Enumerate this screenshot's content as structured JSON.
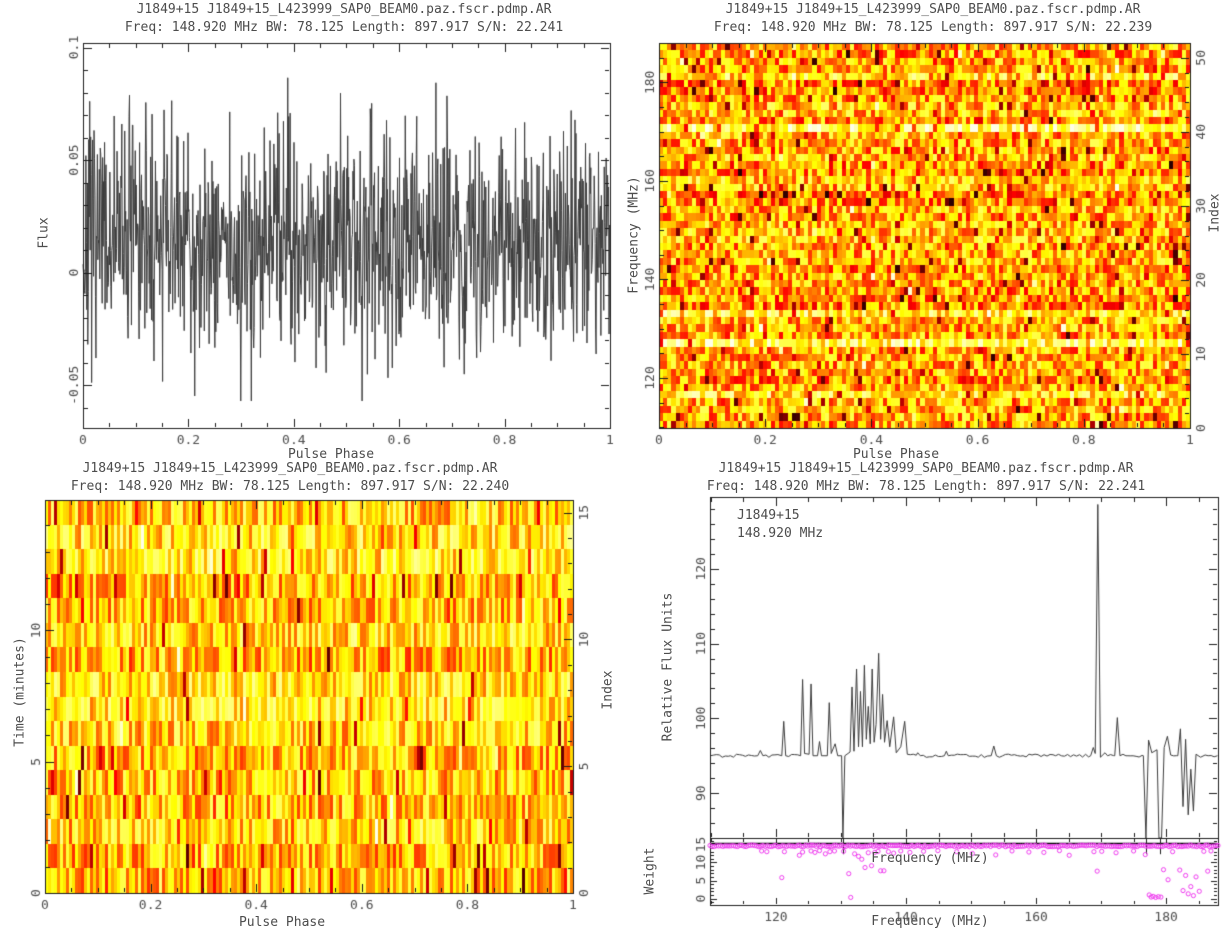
{
  "colors": {
    "background": "#ffffff",
    "text": "#4d4d4d",
    "axis": "#1c1c1c",
    "profile_line": "#3c3c3c",
    "spectrum_line": "#3c3c3c",
    "weight_magenta": "#ee3bee",
    "weight_hline": "#000000"
  },
  "chart_data": [
    {
      "id": "profile",
      "type": "line",
      "title": "J1849+15 J1849+15_L423999_SAP0_BEAM0.paz.fscr.pdmp.AR",
      "subtitle": "Freq: 148.920 MHz BW: 78.125 Length: 897.917 S/N: 22.241",
      "xlabel": "Pulse Phase",
      "ylabel": "Flux",
      "xlim": [
        0,
        1
      ],
      "ylim": [
        -0.069,
        0.102
      ],
      "xticks": [
        0,
        0.2,
        0.4,
        0.6,
        0.8,
        1
      ],
      "xtick_labels": [
        "0",
        "0.2",
        "0.4",
        "0.6",
        "0.8",
        "1"
      ],
      "x_minor_step": 0.05,
      "yticks": [
        -0.05,
        0,
        0.05,
        0.1
      ],
      "ytick_labels": [
        "-0.05",
        "0",
        "0.05",
        "0.1"
      ],
      "y_minor_step": 0.01,
      "noise": {
        "seed": 7,
        "n": 1100,
        "mean": 0.015,
        "sigma": 0.026,
        "min": -0.057,
        "max": 0.0955
      },
      "description": "dense gray noise profile, no clear pulse"
    },
    {
      "id": "phase_frequency",
      "type": "heatmap",
      "title": "J1849+15 J1849+15_L423999_SAP0_BEAM0.paz.fscr.pdmp.AR",
      "subtitle": "Freq: 148.920 MHz BW: 78.125 Length: 897.917 S/N: 22.239",
      "xlabel": "Pulse Phase",
      "ylabel": "Frequency (MHz)",
      "ylabel_right": "Index",
      "xlim": [
        0,
        1
      ],
      "ylim": [
        109.86,
        187.98
      ],
      "ylim_right": [
        0,
        52
      ],
      "xticks": [
        0,
        0.2,
        0.4,
        0.6,
        0.8,
        1
      ],
      "xtick_labels": [
        "0",
        "0.2",
        "0.4",
        "0.6",
        "0.8",
        "1"
      ],
      "x_minor_step": 0.05,
      "yticks": [
        120,
        140,
        160,
        180
      ],
      "ytick_labels": [
        "120",
        "140",
        "160",
        "180"
      ],
      "y_minor_step": 5,
      "yticks_right": [
        10,
        20,
        30,
        40,
        50
      ],
      "ytick_right_labels": [
        "10",
        "20",
        "30",
        "40",
        "50"
      ],
      "y_right_minor_step": 2,
      "colormap": "heat black-red-orange-yellow-white",
      "heat": {
        "seed": 11,
        "rows": 52,
        "cols": 128,
        "base_mean": 0.56,
        "noise_amp": 0.42,
        "dark_frac": 0.08,
        "bright_rows": [
          {
            "freq": 170.2,
            "mean": 0.86
          },
          {
            "freq": 170.9,
            "mean": 0.79
          },
          {
            "freq": 127.8,
            "mean": 0.77
          },
          {
            "freq": 132.8,
            "mean": 0.71
          },
          {
            "freq": 117.3,
            "mean": 0.7
          },
          {
            "freq": 181.5,
            "mean": 0.68
          }
        ]
      }
    },
    {
      "id": "phase_time",
      "type": "heatmap",
      "title": "J1849+15 J1849+15_L423999_SAP0_BEAM0.paz.fscr.pdmp.AR",
      "subtitle": "Freq: 148.920 MHz BW: 78.125 Length: 897.917 S/N: 22.240",
      "xlabel": "Pulse Phase",
      "ylabel": "Time (minutes)",
      "ylabel_right": "Index",
      "xlim": [
        0,
        1
      ],
      "ylim": [
        0,
        14.97
      ],
      "ylim_right": [
        0,
        15.5
      ],
      "xticks": [
        0,
        0.2,
        0.4,
        0.6,
        0.8,
        1
      ],
      "xtick_labels": [
        "0",
        "0.2",
        "0.4",
        "0.6",
        "0.8",
        "1"
      ],
      "x_minor_step": 0.05,
      "yticks": [
        0,
        5,
        10
      ],
      "ytick_labels": [
        "0",
        "5",
        "10"
      ],
      "y_minor_step": 1,
      "yticks_right": [
        0,
        5,
        10,
        15
      ],
      "ytick_right_labels": [
        "0",
        "5",
        "10",
        "15"
      ],
      "y_right_minor_step": 1,
      "colormap": "heat black-red-orange-yellow-white",
      "heat": {
        "seed": 23,
        "rows": 16,
        "cols": 176,
        "base_mean": 0.63,
        "noise_amp": 0.38,
        "dark_frac": 0.05,
        "bright_rows": []
      }
    },
    {
      "id": "bandpass",
      "type": "line",
      "title": "J1849+15 J1849+15_L423999_SAP0_BEAM0.paz.fscr.pdmp.AR",
      "subtitle": "Freq: 148.920 MHz BW: 78.125 Length: 897.917 S/N: 22.241",
      "xlabel": "Frequency (MHz)",
      "ylabel": "Relative Flux Units",
      "ylabel_weight": "Weight",
      "annotation_line1": "J1849+15",
      "annotation_line2": "148.920 MHz",
      "xlim": [
        109.86,
        187.98
      ],
      "ylim": [
        84,
        129.6
      ],
      "xticks": [
        120,
        140,
        160,
        180
      ],
      "xtick_labels": [
        "120",
        "140",
        "160",
        "180"
      ],
      "x_minor_step": 5,
      "yticks": [
        90,
        100,
        110,
        120
      ],
      "ytick_labels": [
        "90",
        "100",
        "110",
        "120"
      ],
      "y_minor_step": 2,
      "baseline": 95,
      "spectrum": [
        [
          109.9,
          95
        ],
        [
          113,
          95
        ],
        [
          117.2,
          95
        ],
        [
          117.6,
          95.7
        ],
        [
          118,
          95
        ],
        [
          120.9,
          95
        ],
        [
          121.2,
          99.6
        ],
        [
          121.5,
          95
        ],
        [
          123.8,
          95
        ],
        [
          124.1,
          105.2
        ],
        [
          124.4,
          95.3
        ],
        [
          125.1,
          95.2
        ],
        [
          125.4,
          104.6
        ],
        [
          125.7,
          95
        ],
        [
          126.4,
          95
        ],
        [
          126.7,
          96.9
        ],
        [
          127,
          95
        ],
        [
          127.9,
          95
        ],
        [
          128.2,
          102.1
        ],
        [
          128.5,
          95.3
        ],
        [
          129.1,
          96.6
        ],
        [
          129.5,
          95
        ],
        [
          130.1,
          95
        ],
        [
          130.3,
          83.5
        ],
        [
          130.6,
          95
        ],
        [
          131.4,
          95.5
        ],
        [
          131.7,
          104.2
        ],
        [
          132,
          95.6
        ],
        [
          132.4,
          106.6
        ],
        [
          132.7,
          96.2
        ],
        [
          133,
          103.6
        ],
        [
          133.3,
          96.2
        ],
        [
          133.6,
          107.1
        ],
        [
          133.9,
          97.2
        ],
        [
          134.2,
          101.6
        ],
        [
          134.5,
          96.6
        ],
        [
          134.8,
          106.6
        ],
        [
          135.1,
          96.8
        ],
        [
          135.4,
          99.2
        ],
        [
          135.8,
          108.7
        ],
        [
          136.1,
          97.2
        ],
        [
          136.4,
          103.2
        ],
        [
          136.7,
          96.8
        ],
        [
          137.1,
          99.7
        ],
        [
          137.5,
          96.2
        ],
        [
          138.1,
          100.2
        ],
        [
          138.5,
          95.4
        ],
        [
          139.2,
          96.2
        ],
        [
          139.8,
          99.6
        ],
        [
          140.2,
          95.2
        ],
        [
          141.8,
          95.4
        ],
        [
          142.2,
          95
        ],
        [
          145.9,
          95
        ],
        [
          146.2,
          95.6
        ],
        [
          146.5,
          95
        ],
        [
          153.1,
          95
        ],
        [
          153.5,
          96.3
        ],
        [
          153.9,
          95
        ],
        [
          158,
          95
        ],
        [
          163,
          95
        ],
        [
          168.4,
          95
        ],
        [
          168.8,
          96.1
        ],
        [
          169.1,
          95.3
        ],
        [
          169.5,
          128.6
        ],
        [
          169.9,
          94.8
        ],
        [
          170.6,
          95.4
        ],
        [
          171,
          95
        ],
        [
          172.1,
          95
        ],
        [
          172.5,
          100.1
        ],
        [
          172.9,
          95
        ],
        [
          174,
          95
        ],
        [
          176.5,
          95
        ],
        [
          176.9,
          83.5
        ],
        [
          177.3,
          97.1
        ],
        [
          177.8,
          95.4
        ],
        [
          178.6,
          95.8
        ],
        [
          178.9,
          83.5
        ],
        [
          179.3,
          83.5
        ],
        [
          179.7,
          96.1
        ],
        [
          180.2,
          97.6
        ],
        [
          180.7,
          95.1
        ],
        [
          181.8,
          95
        ],
        [
          182.2,
          98.6
        ],
        [
          182.6,
          88.2
        ],
        [
          183,
          97.2
        ],
        [
          183.4,
          87.1
        ],
        [
          183.8,
          93.2
        ],
        [
          184.2,
          87.6
        ],
        [
          184.6,
          95.2
        ],
        [
          185.3,
          94.8
        ],
        [
          186,
          95.1
        ],
        [
          187.9,
          95
        ]
      ],
      "weights": {
        "ylim": [
          -1.8,
          16.8
        ],
        "yticks": [
          0,
          5,
          10,
          15
        ],
        "ytick_labels": [
          "0",
          "5",
          "10",
          "15"
        ],
        "y_minor_step": 1,
        "base_level": 14.6,
        "n_base": 240,
        "hline": 15.3,
        "outliers": [
          [
            117.8,
            13.2
          ],
          [
            118.6,
            13.0
          ],
          [
            120.9,
            5.8
          ],
          [
            121.3,
            13.0
          ],
          [
            123.6,
            12.0
          ],
          [
            124.1,
            12.9
          ],
          [
            125.4,
            13.2
          ],
          [
            126.0,
            12.8
          ],
          [
            126.7,
            13.3
          ],
          [
            127.6,
            12.4
          ],
          [
            128.3,
            13.0
          ],
          [
            129.0,
            13.2
          ],
          [
            130.4,
            13.1
          ],
          [
            131.2,
            6.9
          ],
          [
            131.5,
            0.3
          ],
          [
            132.1,
            12.4
          ],
          [
            132.7,
            11.7
          ],
          [
            133.2,
            10.9
          ],
          [
            133.7,
            8.6
          ],
          [
            134.2,
            12.7
          ],
          [
            134.7,
            9.1
          ],
          [
            135.2,
            12.8
          ],
          [
            135.7,
            13.1
          ],
          [
            136.1,
            7.7
          ],
          [
            136.6,
            7.7
          ],
          [
            137.3,
            13.0
          ],
          [
            138.1,
            12.6
          ],
          [
            139.2,
            13.2
          ],
          [
            140.6,
            12.8
          ],
          [
            142.7,
            13.1
          ],
          [
            144.9,
            13.3
          ],
          [
            147.8,
            13.0
          ],
          [
            150.2,
            12.5
          ],
          [
            153.8,
            12.1
          ],
          [
            156.3,
            13.2
          ],
          [
            158.9,
            12.9
          ],
          [
            161.2,
            12.8
          ],
          [
            163.6,
            13.3
          ],
          [
            165.1,
            12.0
          ],
          [
            168.9,
            13.0
          ],
          [
            169.4,
            7.6
          ],
          [
            170.1,
            13.1
          ],
          [
            172.3,
            12.7
          ],
          [
            175.0,
            13.2
          ],
          [
            176.8,
            12.2
          ],
          [
            177.4,
            1.0
          ],
          [
            177.7,
            0.4
          ],
          [
            178.0,
            0.6
          ],
          [
            178.4,
            0.3
          ],
          [
            178.8,
            0.5
          ],
          [
            179.2,
            0.4
          ],
          [
            179.6,
            8.0
          ],
          [
            180.3,
            5.2
          ],
          [
            181.0,
            13.0
          ],
          [
            182.1,
            7.9
          ],
          [
            182.6,
            2.2
          ],
          [
            183.0,
            6.4
          ],
          [
            183.4,
            1.3
          ],
          [
            183.8,
            3.3
          ],
          [
            184.2,
            0.8
          ],
          [
            184.6,
            6.0
          ],
          [
            185.1,
            2.0
          ],
          [
            185.8,
            13.1
          ],
          [
            186.4,
            7.6
          ],
          [
            186.9,
            13.2
          ]
        ],
        "offscale_marks": [
          130.3,
          176.9,
          179.0
        ]
      }
    }
  ]
}
